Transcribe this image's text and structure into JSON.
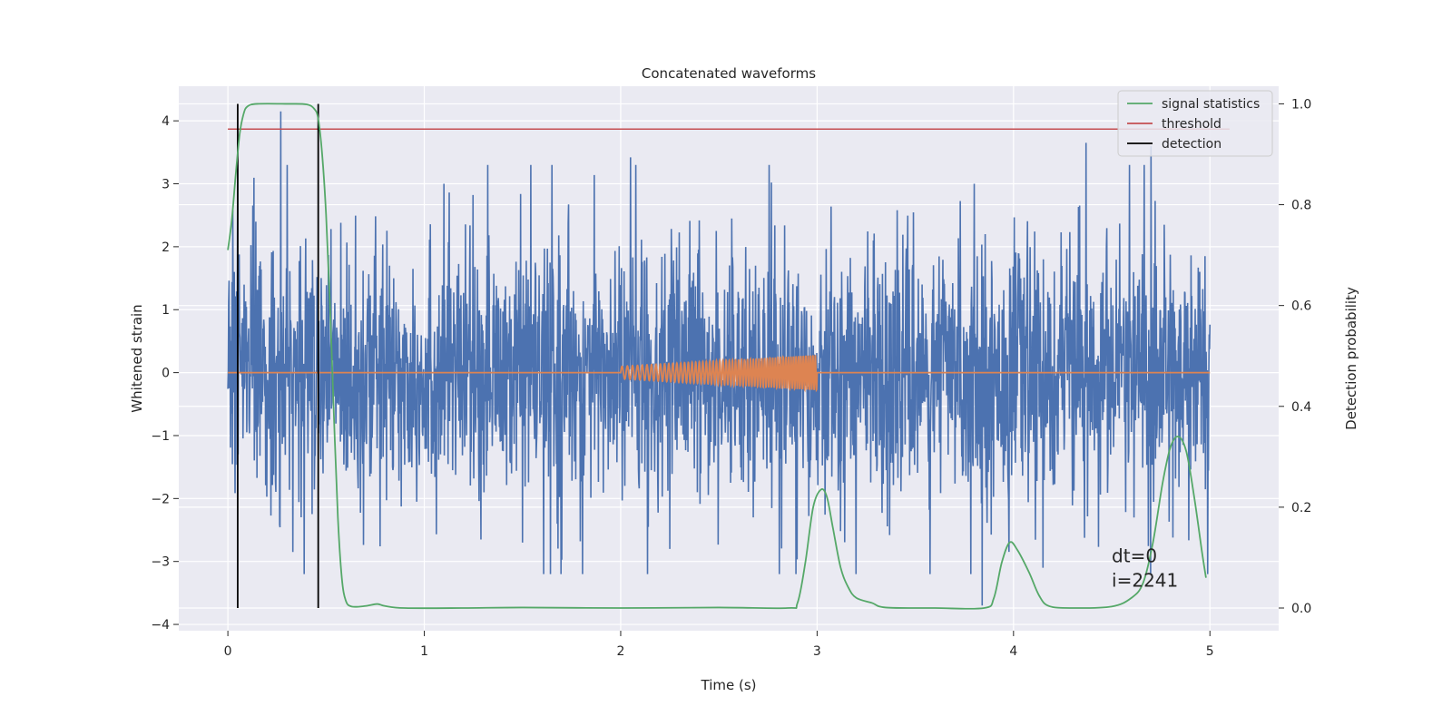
{
  "chart_data": {
    "type": "line",
    "title": "Concatenated waveforms",
    "xlabel": "Time (s)",
    "ylabel": "Whitened strain",
    "y2label": "Detection probability",
    "xlim": [
      -0.25,
      5.35
    ],
    "ylim": [
      -4.1,
      4.55
    ],
    "y2lim": [
      -0.045,
      1.035
    ],
    "xticks": [
      0,
      1,
      2,
      3,
      4,
      5
    ],
    "yticks": [
      -4,
      -3,
      -2,
      -1,
      0,
      1,
      2,
      3,
      4
    ],
    "y2ticks": [
      0.0,
      0.2,
      0.4,
      0.6,
      0.8,
      1.0
    ],
    "y2ticklabels": [
      "0.0",
      "0.2",
      "0.4",
      "0.6",
      "0.8",
      "1.0"
    ],
    "ytick_labels": [
      "−4",
      "−3",
      "−2",
      "−1",
      "0",
      "1",
      "2",
      "3",
      "4"
    ],
    "grid": true,
    "legend": {
      "placement": "top-right",
      "entries": [
        {
          "name": "signal statistics",
          "color": "#55a868"
        },
        {
          "name": "threshold",
          "color": "#c44e52"
        },
        {
          "name": "detection",
          "color": "#000000"
        }
      ]
    },
    "series": [
      {
        "name": "whitened strain noise",
        "axis": "left",
        "color": "#4c72b0",
        "x_range": [
          0,
          5
        ],
        "description_range": [
          -3.7,
          4.2
        ],
        "peaks": [
          {
            "x": 0.27,
            "y": 4.15
          },
          {
            "x": 2.05,
            "y": 3.42
          },
          {
            "x": 4.37,
            "y": 3.65
          },
          {
            "x": 4.7,
            "y": 3.6
          },
          {
            "x": 1.1,
            "y": 3.0
          },
          {
            "x": 3.8,
            "y": 3.0
          },
          {
            "x": 3.84,
            "y": -3.7
          },
          {
            "x": 0.33,
            "y": -2.85
          },
          {
            "x": 1.5,
            "y": -2.7
          },
          {
            "x": 2.25,
            "y": -2.8
          },
          {
            "x": 4.15,
            "y": -3.1
          }
        ]
      },
      {
        "name": "injected signal",
        "axis": "left",
        "color": "#dd8452",
        "x_start": 2.0,
        "x_end": 3.0,
        "amp_start": 0.1,
        "amp_end": 0.28,
        "cycles": 60
      },
      {
        "name": "signal statistics",
        "axis": "right",
        "color": "#55a868",
        "points": [
          [
            0.0,
            0.71
          ],
          [
            0.02,
            0.77
          ],
          [
            0.04,
            0.86
          ],
          [
            0.06,
            0.94
          ],
          [
            0.08,
            0.98
          ],
          [
            0.1,
            0.995
          ],
          [
            0.15,
            1.0
          ],
          [
            0.3,
            1.0
          ],
          [
            0.4,
            0.999
          ],
          [
            0.44,
            0.99
          ],
          [
            0.46,
            0.97
          ],
          [
            0.48,
            0.9
          ],
          [
            0.5,
            0.78
          ],
          [
            0.52,
            0.6
          ],
          [
            0.54,
            0.38
          ],
          [
            0.56,
            0.18
          ],
          [
            0.58,
            0.06
          ],
          [
            0.6,
            0.015
          ],
          [
            0.63,
            0.003
          ],
          [
            0.7,
            0.004
          ],
          [
            0.76,
            0.008
          ],
          [
            0.8,
            0.004
          ],
          [
            0.9,
            0.0
          ],
          [
            1.2,
            0.0
          ],
          [
            1.5,
            0.001
          ],
          [
            2.0,
            0.0
          ],
          [
            2.5,
            0.001
          ],
          [
            2.85,
            0.0
          ],
          [
            2.9,
            0.01
          ],
          [
            2.94,
            0.09
          ],
          [
            2.98,
            0.2
          ],
          [
            3.02,
            0.235
          ],
          [
            3.05,
            0.22
          ],
          [
            3.08,
            0.16
          ],
          [
            3.12,
            0.08
          ],
          [
            3.16,
            0.04
          ],
          [
            3.2,
            0.02
          ],
          [
            3.28,
            0.01
          ],
          [
            3.35,
            0.001
          ],
          [
            3.6,
            0.0
          ],
          [
            3.85,
            0.0
          ],
          [
            3.9,
            0.02
          ],
          [
            3.94,
            0.09
          ],
          [
            3.98,
            0.13
          ],
          [
            4.02,
            0.115
          ],
          [
            4.08,
            0.07
          ],
          [
            4.13,
            0.025
          ],
          [
            4.18,
            0.004
          ],
          [
            4.3,
            0.0
          ],
          [
            4.5,
            0.003
          ],
          [
            4.6,
            0.02
          ],
          [
            4.66,
            0.05
          ],
          [
            4.71,
            0.13
          ],
          [
            4.76,
            0.25
          ],
          [
            4.8,
            0.32
          ],
          [
            4.84,
            0.34
          ],
          [
            4.88,
            0.31
          ],
          [
            4.92,
            0.22
          ],
          [
            4.96,
            0.11
          ],
          [
            4.98,
            0.06
          ]
        ]
      },
      {
        "name": "threshold",
        "axis": "right",
        "color": "#c44e52",
        "x": [
          0,
          5.1
        ],
        "value": 0.95
      },
      {
        "name": "detection",
        "axis": "right",
        "color": "#000000",
        "x_values": [
          0.05,
          0.46
        ],
        "y_range": [
          0.0,
          1.0
        ]
      }
    ],
    "annotation": {
      "lines": [
        "dt=0",
        "i=2241"
      ],
      "x": 4.5,
      "y": -3.3
    }
  }
}
